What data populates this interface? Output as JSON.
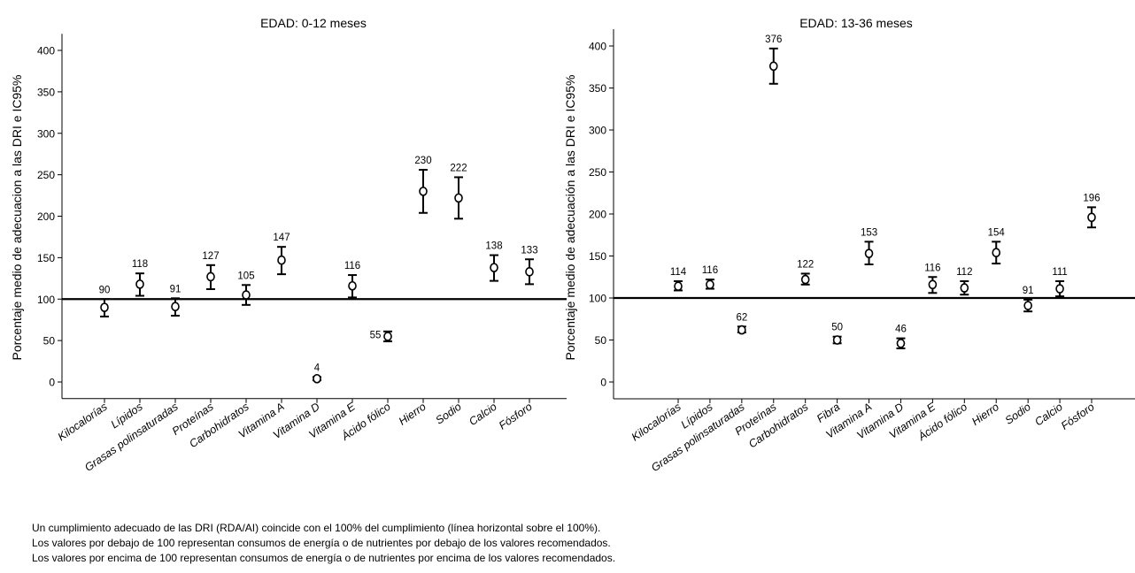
{
  "chart_data": [
    {
      "type": "scatter",
      "title": "EDAD: 0-12 meses",
      "ylabel": "Porcentaje medio de adecuacion a las DRI e IC95%",
      "xlabel": "",
      "ylim": [
        -20,
        420
      ],
      "yticks": [
        0,
        50,
        100,
        150,
        200,
        250,
        300,
        350,
        400
      ],
      "reference_line": 100,
      "grid": false,
      "categories": [
        "Kilocalorías",
        "Lípidos",
        "Grasas polinsaturadas",
        "Proteínas",
        "Carbohidratos",
        "Vitamina A",
        "Vitamina D",
        "Vitamina E",
        "Ácido fólico",
        "Hierro",
        "Sodio",
        "Calcio",
        "Fósforo"
      ],
      "series": [
        {
          "values": [
            90,
            118,
            91,
            127,
            105,
            147,
            4,
            116,
            55,
            230,
            222,
            138,
            133
          ],
          "ci_low": [
            79,
            104,
            80,
            112,
            93,
            130,
            2,
            102,
            49,
            204,
            197,
            122,
            118
          ],
          "ci_high": [
            100,
            131,
            101,
            141,
            117,
            163,
            6,
            129,
            61,
            256,
            247,
            153,
            148
          ],
          "labels": [
            "90",
            "118",
            "91",
            "127",
            "105",
            "147",
            "4",
            "116",
            "55",
            "230",
            "222",
            "138",
            "133"
          ]
        }
      ]
    },
    {
      "type": "scatter",
      "title": "EDAD: 13-36 meses",
      "ylabel": "Porcentaje medio de adecuación a las DRI e IC95%",
      "xlabel": "",
      "ylim": [
        -20,
        420
      ],
      "yticks": [
        0,
        50,
        100,
        150,
        200,
        250,
        300,
        350,
        400
      ],
      "reference_line": 100,
      "grid": false,
      "categories": [
        "Kilocalorías",
        "Lípidos",
        "Grasas polinsaturadas",
        "Proteínas",
        "Carbohidratos",
        "Fibra",
        "Vitamina A",
        "Vitamina D",
        "Vitamina E",
        "Ácido fólico",
        "Hierro",
        "Sodio",
        "Calcio",
        "Fósforo"
      ],
      "series": [
        {
          "values": [
            114,
            116,
            62,
            376,
            122,
            50,
            153,
            46,
            116,
            112,
            154,
            91,
            111,
            196
          ],
          "ci_low": [
            109,
            111,
            59,
            355,
            116,
            46,
            140,
            40,
            106,
            104,
            141,
            84,
            102,
            184
          ],
          "ci_high": [
            120,
            122,
            66,
            397,
            129,
            54,
            167,
            52,
            125,
            120,
            167,
            98,
            120,
            208
          ],
          "labels": [
            "114",
            "116",
            "62",
            "376",
            "122",
            "50",
            "153",
            "46",
            "116",
            "112",
            "154",
            "91",
            "111",
            "196"
          ]
        }
      ]
    }
  ],
  "footnotes": [
    "Un cumplimiento adecuado de las DRI (RDA/AI) coincide con el 100% del cumplimiento (línea horizontal sobre el 100%).",
    "Los valores por debajo de 100 representan consumos de energía o de nutrientes por debajo de los valores recomendados.",
    "Los valores por encima de 100 representan consumos de energía o de nutrientes por encima de los valores recomendados."
  ]
}
